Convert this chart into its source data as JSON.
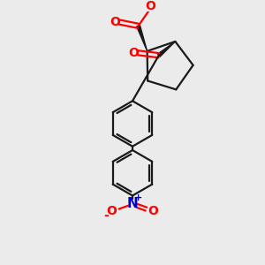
{
  "background_color": "#ebebeb",
  "bond_color": "#1a1a1a",
  "oxygen_color": "#ff0000",
  "nitrogen_color": "#0000cc",
  "line_width": 1.6,
  "figsize": [
    3.0,
    3.0
  ],
  "dpi": 100,
  "xlim": [
    0,
    10
  ],
  "ylim": [
    0,
    10
  ]
}
